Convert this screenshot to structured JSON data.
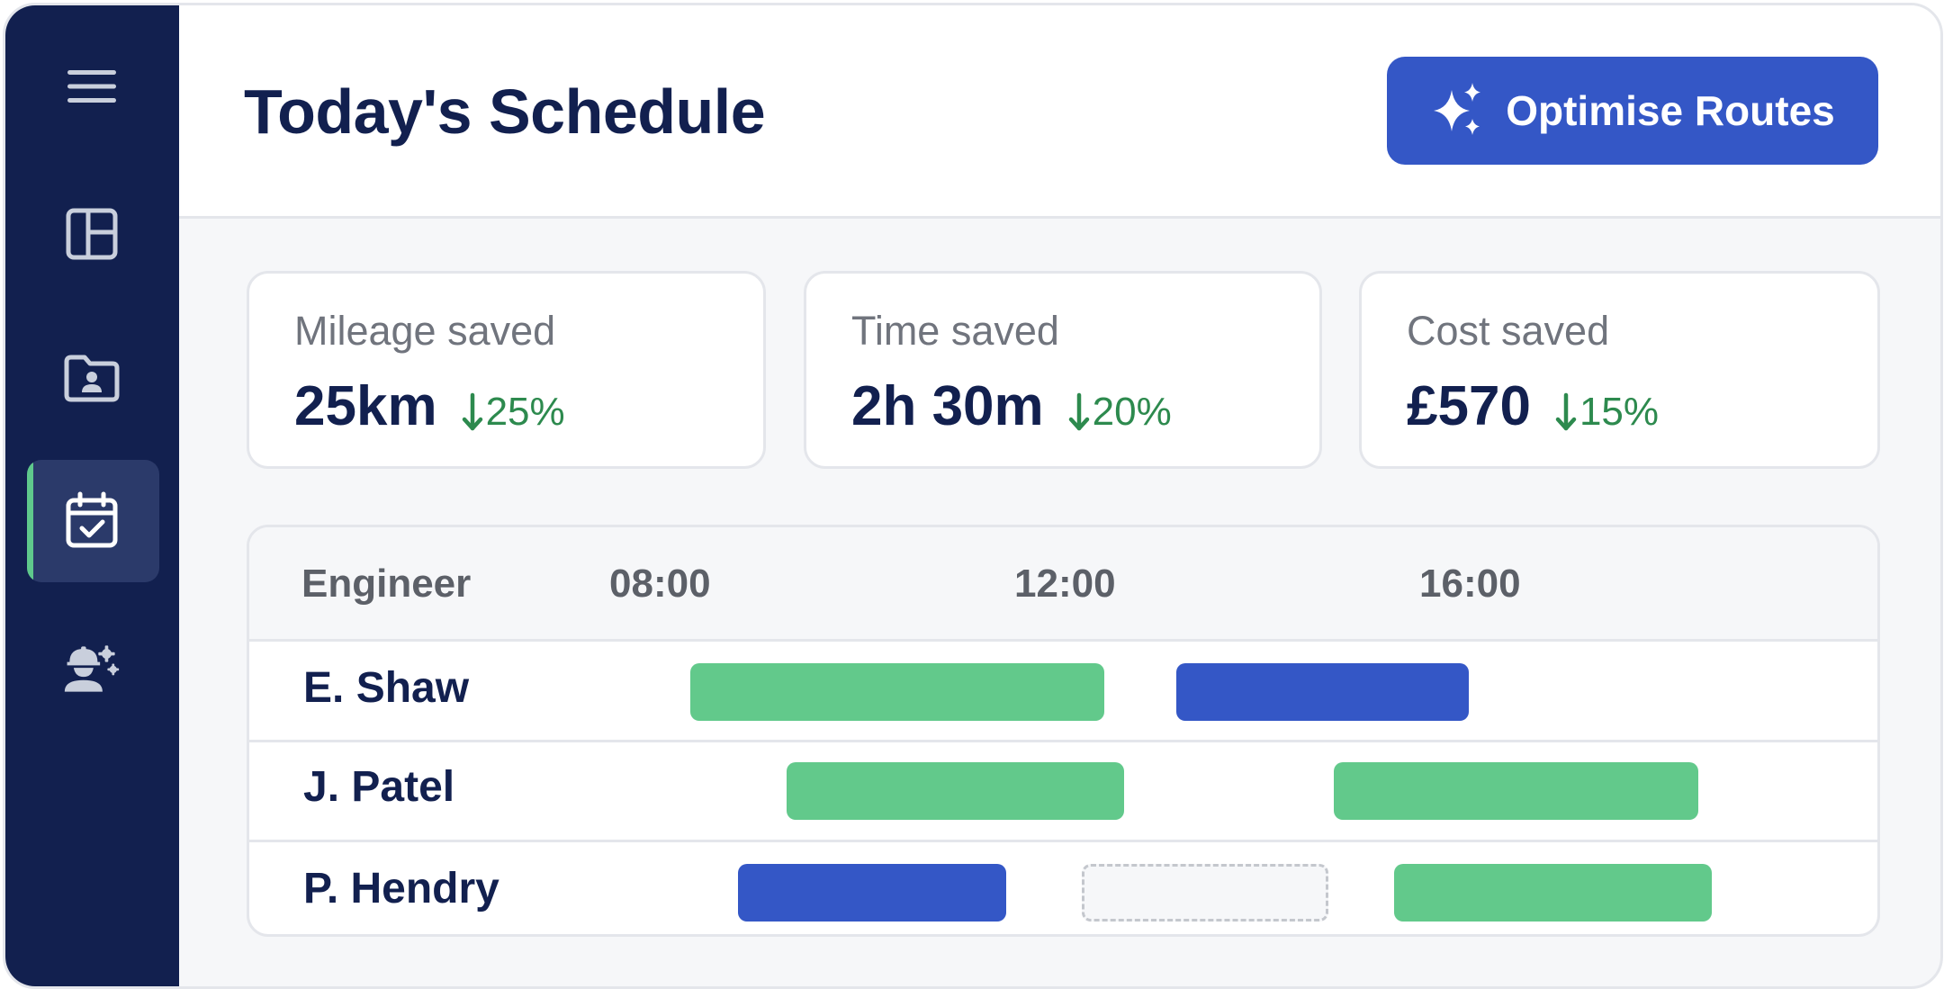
{
  "header": {
    "title": "Today's Schedule",
    "optimise_button_label": "Optimise Routes"
  },
  "sidebar": {
    "items": [
      {
        "name": "menu",
        "icon": "hamburger-menu-icon",
        "active": false
      },
      {
        "name": "dashboard",
        "icon": "dashboard-layout-icon",
        "active": false
      },
      {
        "name": "contacts",
        "icon": "contact-folder-icon",
        "active": false
      },
      {
        "name": "schedule",
        "icon": "calendar-check-icon",
        "active": true
      },
      {
        "name": "engineers",
        "icon": "engineer-settings-icon",
        "active": false
      }
    ],
    "active_indicator_color": "#5fc98c"
  },
  "stats": [
    {
      "label": "Mileage saved",
      "value": "25km",
      "delta": "25%",
      "delta_direction": "down"
    },
    {
      "label": "Time saved",
      "value": "2h 30m",
      "delta": "20%",
      "delta_direction": "down"
    },
    {
      "label": "Cost saved",
      "value": "£570",
      "delta": "15%",
      "delta_direction": "down"
    }
  ],
  "schedule": {
    "column_header": "Engineer",
    "time_labels": [
      "08:00",
      "12:00",
      "16:00"
    ],
    "rows": [
      {
        "engineer": "E. Shaw",
        "jobs": [
          {
            "start": "08:15",
            "end": "12:20",
            "status": "green"
          },
          {
            "start": "13:03",
            "end": "15:56",
            "status": "blue"
          }
        ]
      },
      {
        "engineer": "J. Patel",
        "jobs": [
          {
            "start": "09:12",
            "end": "12:32",
            "status": "green"
          },
          {
            "start": "14:36",
            "end": "18:12",
            "status": "green"
          }
        ]
      },
      {
        "engineer": "P. Hendry",
        "jobs": [
          {
            "start": "08:43",
            "end": "11:22",
            "status": "blue"
          },
          {
            "start": "12:07",
            "end": "14:33",
            "status": "empty"
          },
          {
            "start": "15:12",
            "end": "18:20",
            "status": "green"
          }
        ]
      }
    ]
  },
  "colors": {
    "navy": "#12204f",
    "accent_blue": "#3457c6",
    "job_green": "#62c98b",
    "delta_green": "#2d8a4e"
  }
}
